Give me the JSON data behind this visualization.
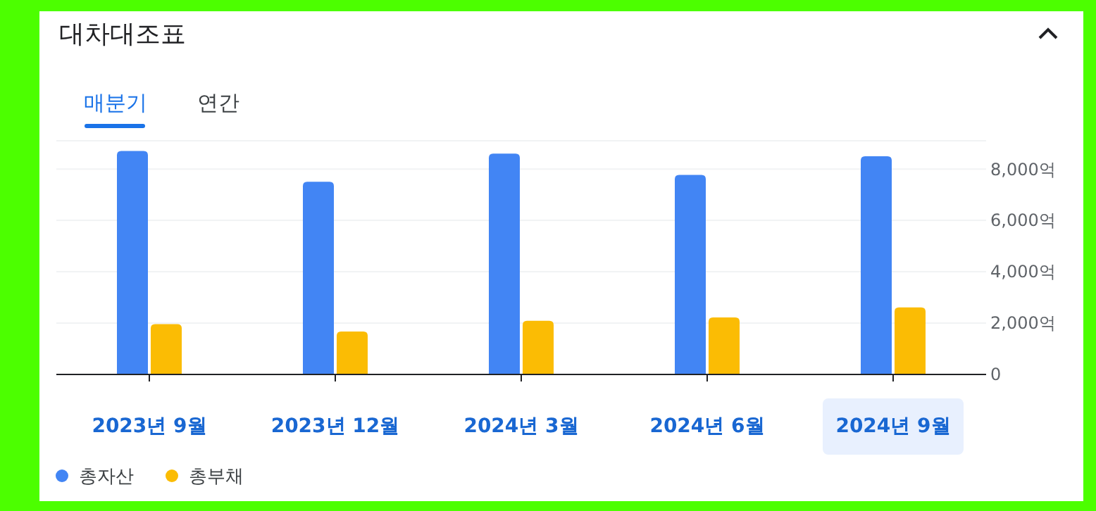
{
  "chart_data": {
    "type": "bar",
    "title": "대차대조표",
    "annotations": [
      "매분기",
      "연간"
    ],
    "categories": [
      "2023년 9월",
      "2023년 12월",
      "2024년 3월",
      "2024년 6월",
      "2024년 9월"
    ],
    "series": [
      {
        "name": "총자산",
        "color": "#4285f4",
        "values": [
          8700,
          7500,
          8600,
          7770,
          8500
        ]
      },
      {
        "name": "총부채",
        "color": "#fbbc04",
        "values": [
          1960,
          1670,
          2090,
          2220,
          2610
        ]
      }
    ],
    "ylim": [
      0,
      9100
    ],
    "yticks": [
      {
        "value": 0,
        "label": "0"
      },
      {
        "value": 2000,
        "label": "2,000억"
      },
      {
        "value": 4000,
        "label": "4,000억"
      },
      {
        "value": 6000,
        "label": "6,000억"
      },
      {
        "value": 8000,
        "label": "8,000억"
      }
    ],
    "grid": "y",
    "legend": "bottom left"
  }
}
